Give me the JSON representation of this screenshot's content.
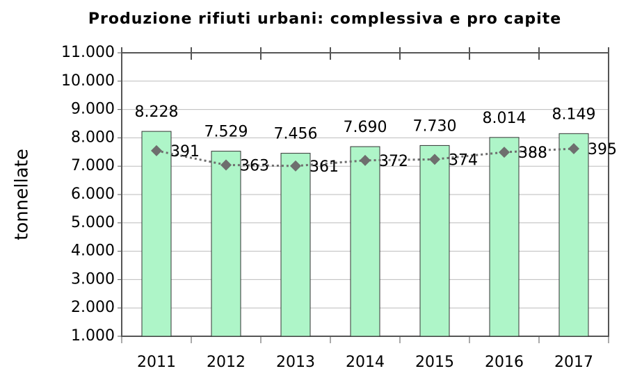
{
  "chart_data": {
    "type": "bar+line",
    "title": "Produzione rifiuti urbani: complessiva e pro capite",
    "y_label": "tonnellate",
    "categories": [
      "2011",
      "2012",
      "2013",
      "2014",
      "2015",
      "2016",
      "2017"
    ],
    "series": [
      {
        "type": "bar",
        "color": "#aef5c8",
        "values": [
          8228,
          7529,
          7456,
          7690,
          7730,
          8014,
          8149
        ],
        "value_labels": [
          "8.228",
          "7.529",
          "7.456",
          "7.690",
          "7.730",
          "8.014",
          "8.149"
        ]
      },
      {
        "type": "line",
        "axis": "y2",
        "color": "#6e6e6e",
        "values": [
          391,
          363,
          361,
          372,
          374,
          388,
          395
        ]
      }
    ],
    "ylim": [
      1000,
      11000
    ],
    "yticks": [
      {
        "value": 1000,
        "label": "1.000"
      },
      {
        "value": 2000,
        "label": "2.000"
      },
      {
        "value": 3000,
        "label": "3.000"
      },
      {
        "value": 4000,
        "label": "4.000"
      },
      {
        "value": 5000,
        "label": "5.000"
      },
      {
        "value": 6000,
        "label": "6.000"
      },
      {
        "value": 7000,
        "label": "7.000"
      },
      {
        "value": 8000,
        "label": "8.000"
      },
      {
        "value": 9000,
        "label": "9.000"
      },
      {
        "value": 10000,
        "label": "10.000"
      },
      {
        "value": 11000,
        "label": "11.000"
      }
    ],
    "y2lim": [
      27,
      583
    ],
    "grid": true
  }
}
